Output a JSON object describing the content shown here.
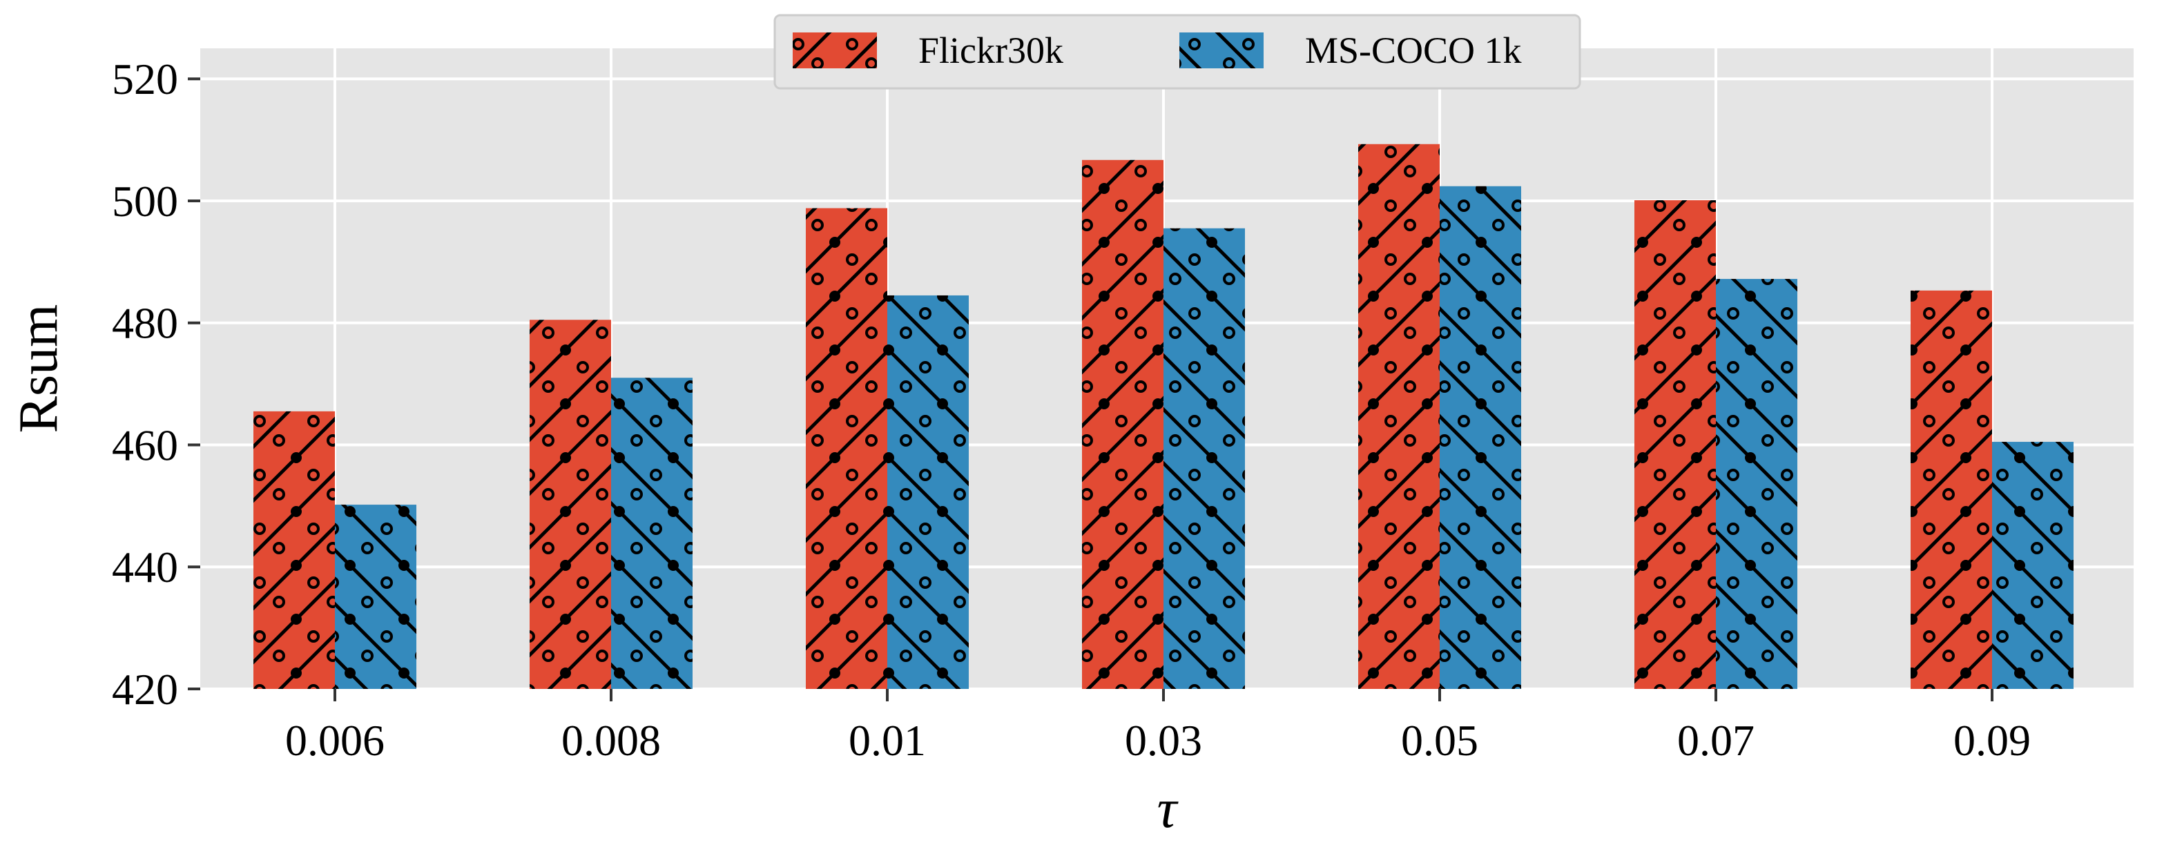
{
  "chart_data": {
    "type": "bar",
    "title": "",
    "xlabel": "τ",
    "ylabel": "Rsum",
    "categories": [
      "0.006",
      "0.008",
      "0.01",
      "0.03",
      "0.05",
      "0.07",
      "0.09"
    ],
    "series": [
      {
        "name": "Flickr30k",
        "values": [
          465.5,
          480.5,
          498.8,
          506.7,
          509.3,
          500.1,
          485.3
        ]
      },
      {
        "name": "MS-COCO 1k",
        "values": [
          450.2,
          471.0,
          484.5,
          495.5,
          502.4,
          487.2,
          460.5
        ]
      }
    ],
    "ylim": [
      420,
      525
    ],
    "yticks": [
      420,
      440,
      460,
      480,
      500,
      520
    ],
    "grid": true,
    "legend_position": "top-center"
  },
  "colors": {
    "flickr": "#E24A33",
    "coco": "#348ABD",
    "background": "#E5E5E5",
    "grid": "#FFFFFF",
    "hatch": "#000000"
  }
}
